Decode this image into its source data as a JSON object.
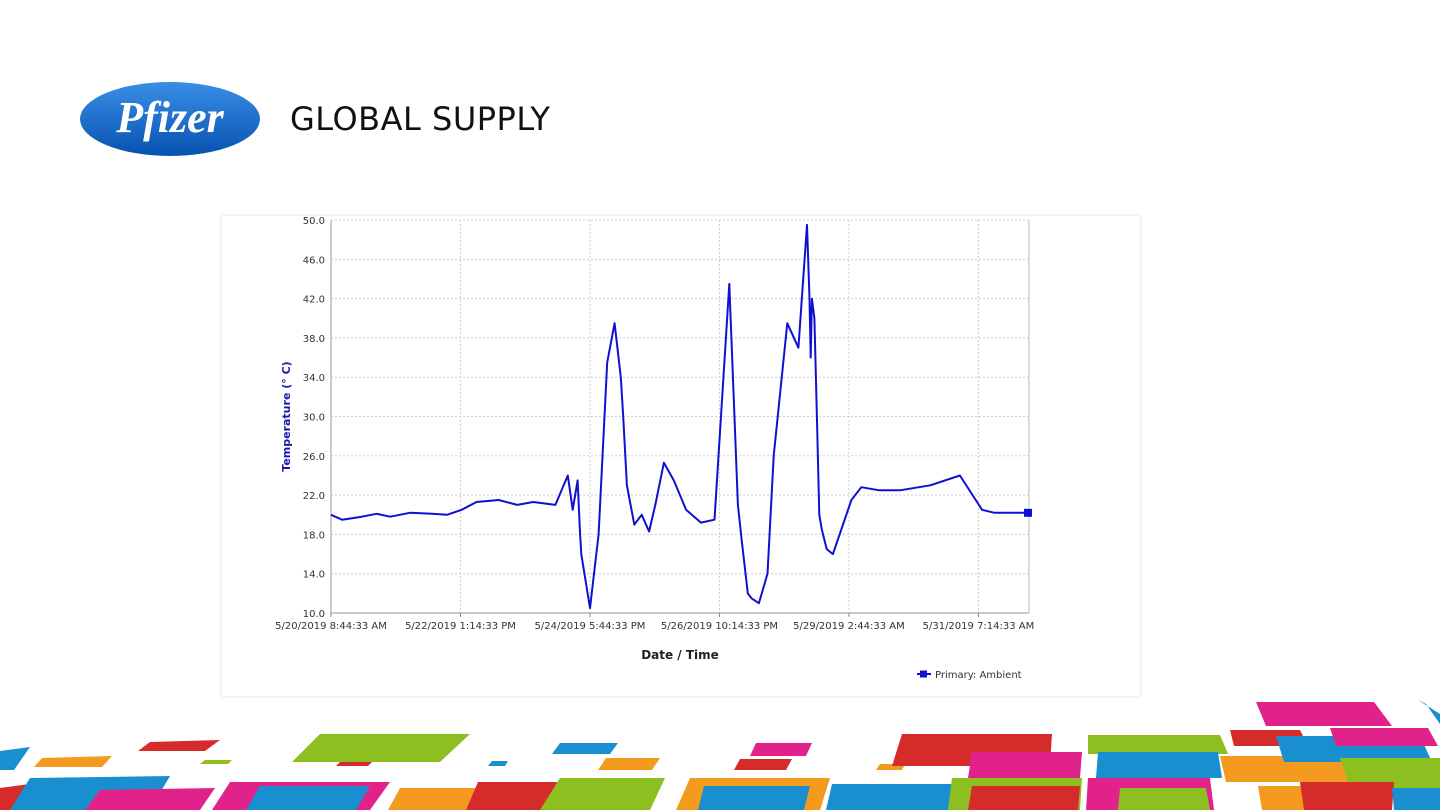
{
  "header": {
    "logo_text": "Pfizer",
    "title": "GLOBAL SUPPLY"
  },
  "colors": {
    "brand_blue": "#0a65c8",
    "series_color": "#1010d0",
    "axis_label_color": "#1a1aa8"
  },
  "chart_data": {
    "type": "line",
    "title": "",
    "xlabel": "Date / Time",
    "ylabel": "Temperature (° C)",
    "ylim": [
      10,
      50
    ],
    "yticks": [
      10.0,
      14.0,
      18.0,
      22.0,
      26.0,
      30.0,
      34.0,
      38.0,
      42.0,
      46.0,
      50.0
    ],
    "ytick_labels": [
      "10.0",
      "14.0",
      "18.0",
      "22.0",
      "26.0",
      "30.0",
      "34.0",
      "38.0",
      "42.0",
      "46.0",
      "50.0"
    ],
    "xlim": [
      "2019-05-20T08:44:33",
      "2019-06-01T03:44:33"
    ],
    "xticks": [
      "2019-05-20T08:44:33",
      "2019-05-22T13:14:33",
      "2019-05-24T17:44:33",
      "2019-05-26T22:14:33",
      "2019-05-29T02:44:33",
      "2019-05-31T07:14:33"
    ],
    "xtick_labels": [
      "5/20/2019 8:44:33 AM",
      "5/22/2019 1:14:33 PM",
      "5/24/2019 5:44:33 PM",
      "5/26/2019 10:14:33 PM",
      "5/29/2019 2:44:33 AM",
      "5/31/2019 7:14:33 AM"
    ],
    "grid": true,
    "legend": {
      "position": "bottom-right",
      "entries": [
        "Primary: Ambient"
      ]
    },
    "series": [
      {
        "name": "Primary: Ambient",
        "x": [
          "2019-05-20T08:44",
          "2019-05-20T13:14",
          "2019-05-20T21:14",
          "2019-05-21T03:14",
          "2019-05-21T08:44",
          "2019-05-21T16:44",
          "2019-05-22T01:44",
          "2019-05-22T07:44",
          "2019-05-22T13:44",
          "2019-05-22T19:44",
          "2019-05-23T04:44",
          "2019-05-23T12:14",
          "2019-05-23T18:44",
          "2019-05-24T03:44",
          "2019-05-24T08:44",
          "2019-05-24T10:44",
          "2019-05-24T12:44",
          "2019-05-24T13:44",
          "2019-05-24T14:14",
          "2019-05-24T17:44",
          "2019-05-24T21:14",
          "2019-05-25T00:44",
          "2019-05-25T03:44",
          "2019-05-25T06:14",
          "2019-05-25T07:14",
          "2019-05-25T08:44",
          "2019-05-25T11:44",
          "2019-05-25T14:44",
          "2019-05-25T17:44",
          "2019-05-25T20:14",
          "2019-05-25T23:44",
          "2019-05-26T03:44",
          "2019-05-26T08:44",
          "2019-05-26T14:44",
          "2019-05-26T20:14",
          "2019-05-27T02:14",
          "2019-05-27T05:44",
          "2019-05-27T07:14",
          "2019-05-27T09:44",
          "2019-05-27T11:14",
          "2019-05-27T14:14",
          "2019-05-27T17:44",
          "2019-05-27T20:14",
          "2019-05-28T01:44",
          "2019-05-28T06:14",
          "2019-05-28T09:44",
          "2019-05-28T10:44",
          "2019-05-28T11:14",
          "2019-05-28T11:44",
          "2019-05-28T12:44",
          "2019-05-28T13:44",
          "2019-05-28T14:44",
          "2019-05-28T15:44",
          "2019-05-28T17:44",
          "2019-05-28T20:14",
          "2019-05-29T03:44",
          "2019-05-29T07:44",
          "2019-05-29T14:44",
          "2019-05-29T23:44",
          "2019-05-30T11:44",
          "2019-05-30T23:44",
          "2019-05-31T08:44",
          "2019-05-31T13:44",
          "2019-05-31T19:44",
          "2019-06-01T03:44"
        ],
        "y": [
          20.0,
          19.5,
          19.8,
          20.1,
          19.8,
          20.2,
          20.1,
          20.0,
          20.5,
          21.3,
          21.5,
          21.0,
          21.3,
          21.0,
          24.0,
          20.5,
          23.5,
          18.0,
          16.0,
          10.5,
          18.0,
          35.5,
          39.5,
          34.0,
          30.0,
          23.0,
          19.0,
          20.0,
          18.3,
          21.0,
          25.3,
          23.5,
          20.5,
          19.2,
          19.5,
          43.5,
          21.0,
          17.5,
          12.0,
          11.5,
          11.0,
          14.0,
          26.0,
          39.5,
          37.0,
          49.5,
          42.0,
          36.0,
          42.0,
          40.0,
          30.0,
          20.0,
          18.5,
          16.5,
          16.0,
          21.5,
          22.8,
          22.5,
          22.5,
          23.0,
          24.0,
          20.5,
          20.2,
          20.2,
          20.2
        ]
      }
    ]
  }
}
